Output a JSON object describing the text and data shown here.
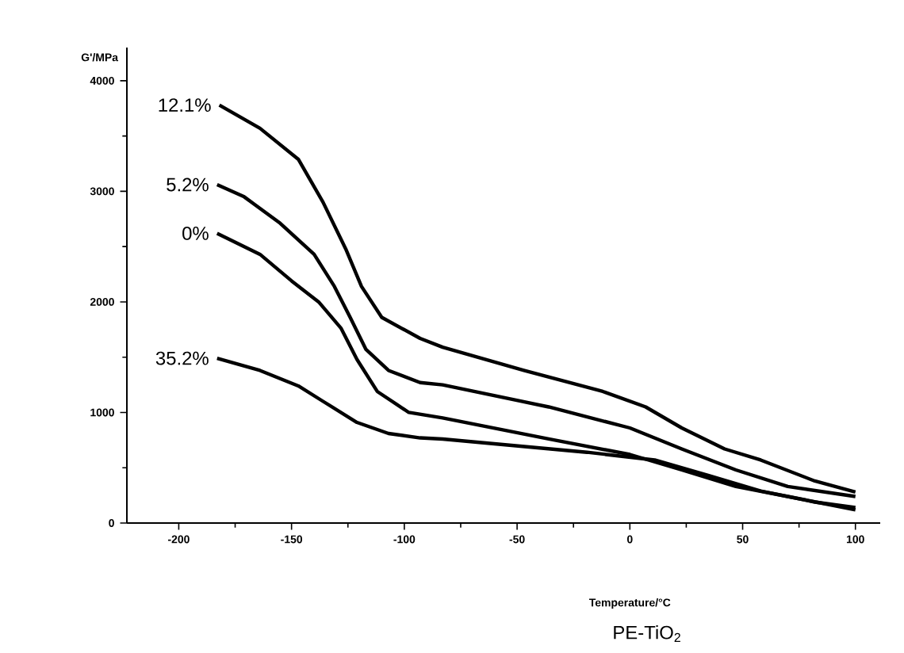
{
  "chart_data": {
    "type": "line",
    "xlabel": "Temperature/°C",
    "ylabel": "G'/MPa",
    "xlim": [
      -223,
      111
    ],
    "ylim": [
      0,
      4300
    ],
    "xticks": [
      -200,
      -150,
      -100,
      -50,
      0,
      50,
      100
    ],
    "yticks": [
      0,
      1000,
      2000,
      3000,
      4000
    ],
    "grid": false,
    "legend": false,
    "annotations": [
      "PE-TiO$_{2}$"
    ],
    "series": [
      {
        "name": "12.1%",
        "color": "#000000",
        "x": [
          -182,
          -164,
          -147,
          -136,
          -126,
          -119,
          -110,
          -93,
          -83,
          -47,
          -12,
          7,
          23,
          42,
          58,
          82,
          100
        ],
        "values": [
          3780,
          3570,
          3290,
          2900,
          2480,
          2140,
          1860,
          1670,
          1590,
          1380,
          1190,
          1050,
          860,
          670,
          570,
          380,
          280
        ]
      },
      {
        "name": "5.2%",
        "color": "#000000",
        "x": [
          -183,
          -171,
          -155,
          -140,
          -131,
          -124,
          -117,
          -107,
          -93,
          -83,
          -36,
          0,
          23,
          47,
          70,
          100
        ],
        "values": [
          3060,
          2950,
          2710,
          2430,
          2140,
          1860,
          1570,
          1380,
          1270,
          1250,
          1050,
          860,
          670,
          480,
          330,
          240
        ]
      },
      {
        "name": "0%",
        "color": "#000000",
        "x": [
          -183,
          -164,
          -150,
          -138,
          -128,
          -121,
          -112,
          -98,
          -83,
          -36,
          0,
          23,
          47,
          70,
          100
        ],
        "values": [
          2620,
          2430,
          2190,
          2000,
          1760,
          1480,
          1190,
          1000,
          950,
          760,
          620,
          480,
          330,
          240,
          120
        ]
      },
      {
        "name": "35.2%",
        "color": "#000000",
        "x": [
          -183,
          -164,
          -147,
          -136,
          -121,
          -107,
          -93,
          -83,
          -19,
          11,
          35,
          58,
          82,
          100
        ],
        "values": [
          1490,
          1380,
          1240,
          1100,
          910,
          810,
          770,
          760,
          640,
          570,
          430,
          290,
          190,
          140
        ]
      }
    ]
  }
}
